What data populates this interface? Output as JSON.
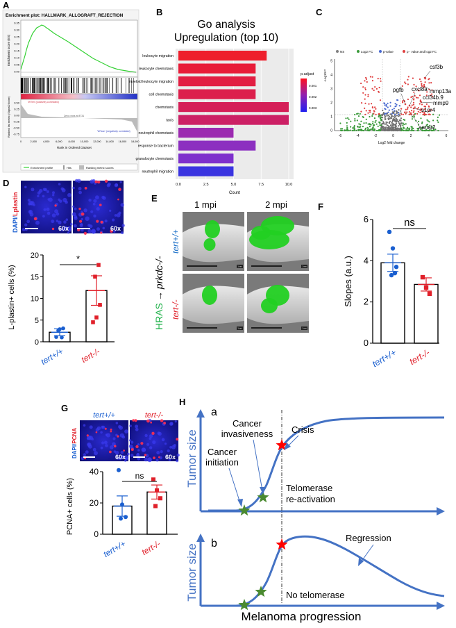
{
  "panel_letters": {
    "A": "A",
    "B": "B",
    "C": "C",
    "D": "D",
    "E": "E",
    "F": "F",
    "G": "G",
    "H": "H"
  },
  "panel_A": {
    "title": "Enrichment plot: HALLMARK_ALLOGRAFT_REJECTION",
    "ylabel_es": "Enrichment score (ES)",
    "ylabel_rank": "Ranked list metric (Signal2Noise)",
    "xlabel": "Rank in Ordered Dataset",
    "es_ticks": [
      "0.35",
      "0.30",
      "0.25",
      "0.20",
      "0.15",
      "0.10",
      "0.05",
      "0.00"
    ],
    "rank_ticks": [
      "0.50",
      "0.25",
      "0.00",
      "-0.25",
      "-0.50",
      "-0.75"
    ],
    "x_ticks": [
      "0",
      "2,000",
      "4,000",
      "6,000",
      "8,000",
      "10,000",
      "12,000",
      "14,000",
      "16,000",
      "18,000"
    ],
    "pos_label": "'WTrel' (positively correlated)",
    "neg_label": "'WTcon' (negatively correlated)",
    "zero_cross": "Zero cross at 8731",
    "legend": [
      "Enrichment profile",
      "Hits",
      "Ranking metric scores"
    ],
    "colors": {
      "profile": "#34d134",
      "pos": "#e0304a",
      "neg": "#3038c8"
    }
  },
  "panel_B": {
    "title_line1": "Go analysis",
    "title_line2": "Upregulation (top 10)",
    "xlabel": "Count",
    "legend_title": "p.adjust",
    "legend_ticks": [
      "0.001",
      "0.002",
      "0.003"
    ],
    "chart_data": {
      "type": "bar",
      "orientation": "horizontal",
      "categories": [
        "leukocyte migration",
        "leukocyte chemotaxis",
        "myeloid leukocyte migration",
        "cell chemotaxis",
        "chemotaxis",
        "taxis",
        "neutrophil chemotaxis",
        "response to bacterium",
        "granulocyte chemotaxis",
        "neutrophil migration"
      ],
      "values": [
        8,
        7,
        7,
        7,
        10,
        10,
        5,
        7,
        5,
        5
      ],
      "colors": [
        "#ee1f2c",
        "#e81c38",
        "#e21e42",
        "#dc1f4c",
        "#d51f58",
        "#cc2065",
        "#9c2ab0",
        "#8c2fc0",
        "#7e30cc",
        "#3a34e0"
      ],
      "xlim": [
        0,
        10
      ],
      "x_ticks": [
        "0.0",
        "2.5",
        "5.0",
        "7.5",
        "10.0"
      ]
    }
  },
  "panel_C": {
    "legend": [
      "NS",
      "Log2 FC",
      "p-value",
      "p - value and log2 FC"
    ],
    "legend_colors": [
      "#808080",
      "#3a9a3a",
      "#4a6ad0",
      "#e04040"
    ],
    "xlabel": "Log2 fold change",
    "ylabel": "-Log10 P",
    "y_ticks": [
      "5",
      "4",
      "3",
      "2",
      "1",
      "0"
    ],
    "x_ticks": [
      "-6",
      "-4",
      "-2",
      "0",
      "2",
      "4",
      "6"
    ],
    "genes": [
      "csf3b",
      "mmp13a",
      "ccl34b.9",
      "mmp9",
      "pgfb",
      "cxcl8a",
      "s1pr4",
      "aanat2"
    ]
  },
  "panel_D": {
    "stain_dapi": "DAPI/",
    "stain_marker": "Lplastin",
    "mag": "60x",
    "ylabel": "L-plastin+ cells (%)",
    "sig": "*",
    "chart_data": {
      "type": "bar",
      "categories": [
        "tert+/+",
        "tert-/-"
      ],
      "values": [
        2.2,
        11.8
      ],
      "errors": [
        0.8,
        3.4
      ],
      "points": [
        [
          1.1,
          2.9,
          3.1,
          2.6,
          1.0
        ],
        [
          4.5,
          5.6,
          8.5,
          15.0,
          17.7
        ]
      ],
      "ylim": [
        0,
        20
      ],
      "y_ticks": [
        "0",
        "5",
        "10",
        "15",
        "20"
      ],
      "colors": [
        "#1a5fd0",
        "#e0202a"
      ]
    }
  },
  "panel_E": {
    "col1": "1 mpi",
    "col2": "2 mpi",
    "side_label_green": "HRAS",
    "side_arrow": "→",
    "side_label_black": "prkdc-/-",
    "row1": "tert+/+",
    "row2": "tert-/-",
    "scale_tag": "1 mm"
  },
  "panel_F": {
    "ylabel": "Slopes (a.u.)",
    "ns": "ns",
    "chart_data": {
      "type": "bar",
      "categories": [
        "tert+/+",
        "tert-/-"
      ],
      "values": [
        3.9,
        2.85
      ],
      "errors": [
        0.42,
        0.32
      ],
      "points": [
        [
          5.4,
          4.6,
          3.7,
          3.3,
          3.4
        ],
        [
          3.2,
          2.7,
          2.4
        ]
      ],
      "ylim": [
        0,
        6
      ],
      "y_ticks": [
        "0",
        "2",
        "4",
        "6"
      ],
      "colors": [
        "#1a5fd0",
        "#e0202a"
      ]
    }
  },
  "panel_G": {
    "stain_dapi": "DAPI/",
    "stain_marker": "PCNA",
    "col1": "tert+/+",
    "col2": "tert-/-",
    "mag": "60x",
    "ylabel": "PCNA+ cells (%)",
    "ns": "ns",
    "chart_data": {
      "type": "bar",
      "categories": [
        "tert+/+",
        "tert-/-"
      ],
      "values": [
        18,
        27
      ],
      "errors": [
        6.5,
        4.5
      ],
      "points": [
        [
          41,
          19,
          11,
          10
        ],
        [
          35,
          28,
          23,
          18
        ]
      ],
      "ylim": [
        0,
        40
      ],
      "y_ticks": [
        "0",
        "20",
        "40"
      ],
      "colors": [
        "#1a5fd0",
        "#e0202a"
      ]
    }
  },
  "panel_H": {
    "sub_a": "a",
    "sub_b": "b",
    "ylabel": "Tumor size",
    "xlabel": "Melanoma progression",
    "cancer_invasiveness_1": "Cancer",
    "cancer_invasiveness_2": "invasiveness",
    "cancer_initiation_1": "Cancer",
    "cancer_initiation_2": "initiation",
    "crisis": "Crisis",
    "telomerase_1": "Telomerase",
    "telomerase_2": "re-activation",
    "regression": "Regression",
    "no_telomerase": "No telomerase",
    "colors": {
      "curve": "#4472c4",
      "green_star": "#4a8a30",
      "red_star": "#ff0000"
    }
  }
}
